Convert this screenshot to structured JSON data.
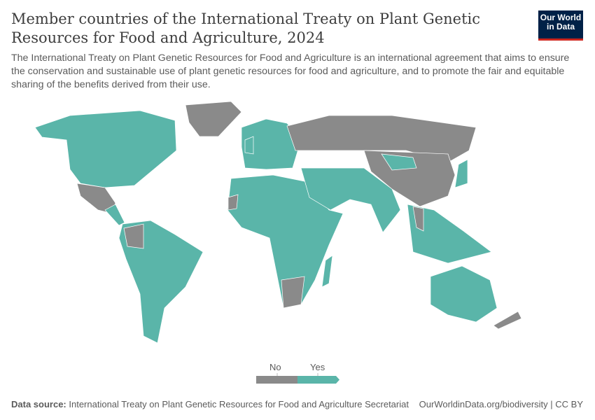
{
  "title": "Member countries of the International Treaty on Plant Genetic Resources for Food and Agriculture, 2024",
  "subtitle": "The International Treaty on Plant Genetic Resources for Food and Agriculture is an international agreement that aims to ensure the conservation and sustainable use of plant genetic resources for food and agriculture, and to promote the fair and equitable sharing of the benefits derived from their use.",
  "logo": "Our World in Data",
  "legend": {
    "items": [
      {
        "label": "No",
        "color": "#8a8a8a"
      },
      {
        "label": "Yes",
        "color": "#5ab5a9"
      }
    ]
  },
  "footer": {
    "source_label": "Data source:",
    "source": "International Treaty on Plant Genetic Resources for Food and Agriculture Secretariat",
    "link": "OurWorldinData.org/biodiversity | CC BY"
  }
}
